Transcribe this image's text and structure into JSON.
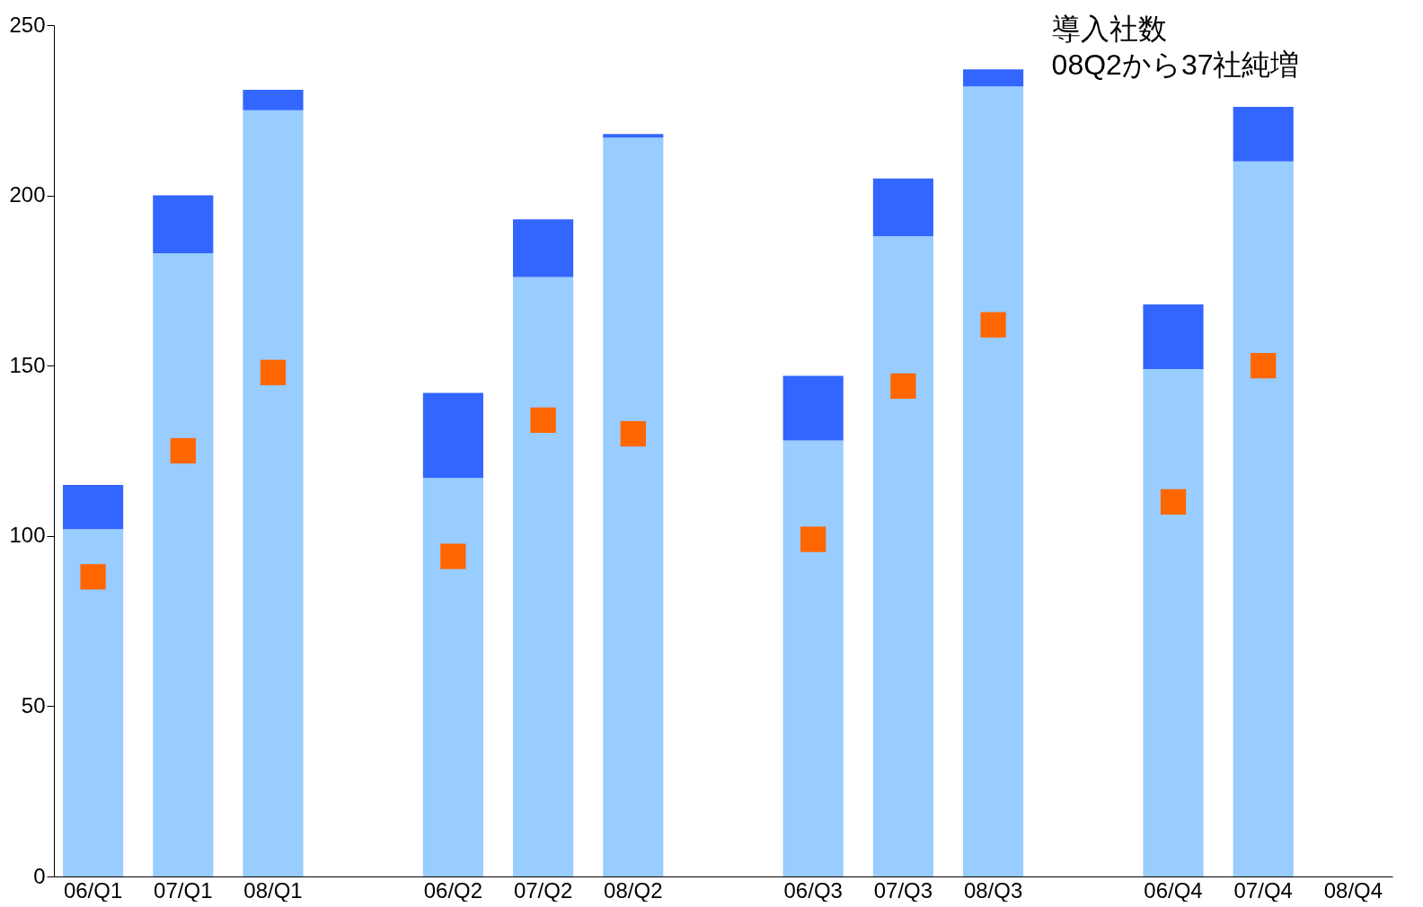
{
  "chart_data": {
    "type": "bar",
    "stacked": true,
    "categories": [
      "06/Q1",
      "07/Q1",
      "08/Q1",
      null,
      "06/Q2",
      "07/Q2",
      "08/Q2",
      null,
      "06/Q3",
      "07/Q3",
      "08/Q3",
      null,
      "06/Q4",
      "07/Q4",
      "08/Q4"
    ],
    "series": [
      {
        "color": "#99ccff",
        "values": [
          102,
          183,
          225,
          null,
          117,
          176,
          217,
          null,
          128,
          188,
          232,
          null,
          149,
          210,
          null
        ]
      },
      {
        "color": "#3366ff",
        "values": [
          13,
          17,
          6,
          null,
          25,
          17,
          1,
          null,
          19,
          17,
          5,
          null,
          19,
          16,
          null
        ]
      },
      {
        "type": "scatter",
        "color": "#ff6600",
        "values": [
          88,
          125,
          148,
          null,
          94,
          134,
          130,
          null,
          99,
          144,
          162,
          null,
          110,
          150,
          null
        ]
      }
    ],
    "ylim": [
      0,
      250
    ],
    "yticks": [
      0,
      50,
      100,
      150,
      200,
      250
    ],
    "grid": false,
    "marker": "square",
    "annotations": [
      {
        "text": "導入社数\n08Q2から37社純増",
        "x": "08/Q3",
        "y": 232
      }
    ]
  }
}
